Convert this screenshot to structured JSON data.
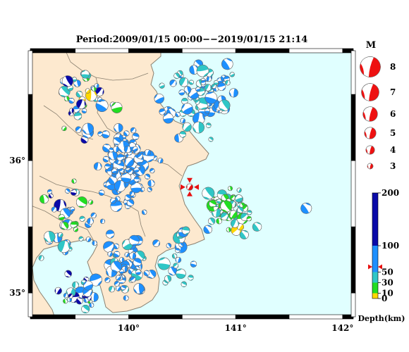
{
  "title": "Period:2009/01/15 00:00−−2019/01/15 21:14",
  "map": {
    "lon_range": [
      139.08,
      142.1
    ],
    "lat_range": [
      34.82,
      36.83
    ],
    "lon_ticks": [
      {
        "value": 140,
        "label": "140°"
      },
      {
        "value": 141,
        "label": "141°"
      },
      {
        "value": 142,
        "label": "142°"
      }
    ],
    "lat_ticks": [
      {
        "value": 35,
        "label": "35°"
      },
      {
        "value": 36,
        "label": "36°"
      }
    ],
    "colors": {
      "sea": "#e0ffff",
      "land": "#fde9cf",
      "border": "#8a8070",
      "frame": "#000000"
    }
  },
  "highlight_event": {
    "lon": 140.57,
    "lat": 35.8,
    "depth": 60,
    "mag": 3.2,
    "marker_color": "#e81010"
  },
  "magnitude_legend": {
    "title": "M",
    "entries": [
      {
        "mag": 8,
        "label": "8"
      },
      {
        "mag": 7,
        "label": "7"
      },
      {
        "mag": 6,
        "label": "6"
      },
      {
        "mag": 5,
        "label": "5"
      },
      {
        "mag": 4,
        "label": "4"
      },
      {
        "mag": 3,
        "label": "3"
      }
    ],
    "color": "#ee1111"
  },
  "depth_scale": {
    "title": "Depth(km)",
    "range": [
      0,
      200
    ],
    "ticks": [
      {
        "value": 200,
        "label": "200"
      },
      {
        "value": 100,
        "label": "100"
      },
      {
        "value": 50,
        "label": "50"
      },
      {
        "value": 30,
        "label": "30"
      },
      {
        "value": 10,
        "label": "10"
      },
      {
        "value": 0,
        "label": "0"
      }
    ],
    "bands": [
      {
        "from": 0,
        "to": 10,
        "color": "#ffd700"
      },
      {
        "from": 10,
        "to": 30,
        "color": "#22dd22"
      },
      {
        "from": 30,
        "to": 50,
        "color": "#2fc6c6"
      },
      {
        "from": 50,
        "to": 100,
        "color": "#1e90ff"
      },
      {
        "from": 100,
        "to": 200,
        "color": "#0a0aa8"
      }
    ],
    "marker_depth": 60
  }
}
